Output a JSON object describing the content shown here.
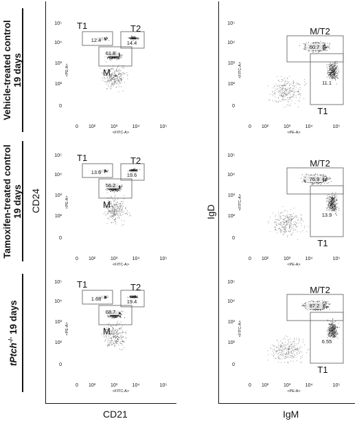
{
  "row_labels": [
    {
      "line1": "Vehicle-treated control",
      "line2": "19 days"
    },
    {
      "line1": "Tamoxifen-treated control",
      "line2": "19 days"
    },
    {
      "line1": "tPtch",
      "sup": "-/-",
      "line2": " 19 days"
    }
  ],
  "axis_titles": {
    "left_y": "CD24",
    "left_x": "CD21",
    "right_y": "IgD",
    "right_x": "IgM"
  },
  "channel_labels": {
    "left_y": "<PE-A>",
    "left_x": "<FITC-A>",
    "right_y": "<FITC-A>",
    "right_x": "<PE-A>"
  },
  "tick_labels": {
    "y": [
      "10⁵",
      "10⁴",
      "10³",
      "10²",
      "0"
    ],
    "x": [
      "0",
      "10²",
      "10³",
      "10⁴",
      "10⁵"
    ]
  },
  "gate_labels": {
    "left": [
      "T1",
      "T2",
      "M"
    ],
    "right": [
      "M/T2",
      "T1"
    ]
  },
  "panels": [
    {
      "left": {
        "T1": "12.4",
        "T2": "14.4",
        "M": "61.8"
      },
      "right": {
        "MT2": "60.7",
        "T1": "11.1"
      }
    },
    {
      "left": {
        "T1": "13.6",
        "T2": "19.6",
        "M": "56.2"
      },
      "right": {
        "MT2": "76.9",
        "T1": "13.9"
      }
    },
    {
      "left": {
        "T1": "1.68",
        "T2": "19.4",
        "M": "68.7"
      },
      "right": {
        "MT2": "87.2",
        "T1": "6.55"
      }
    }
  ]
}
